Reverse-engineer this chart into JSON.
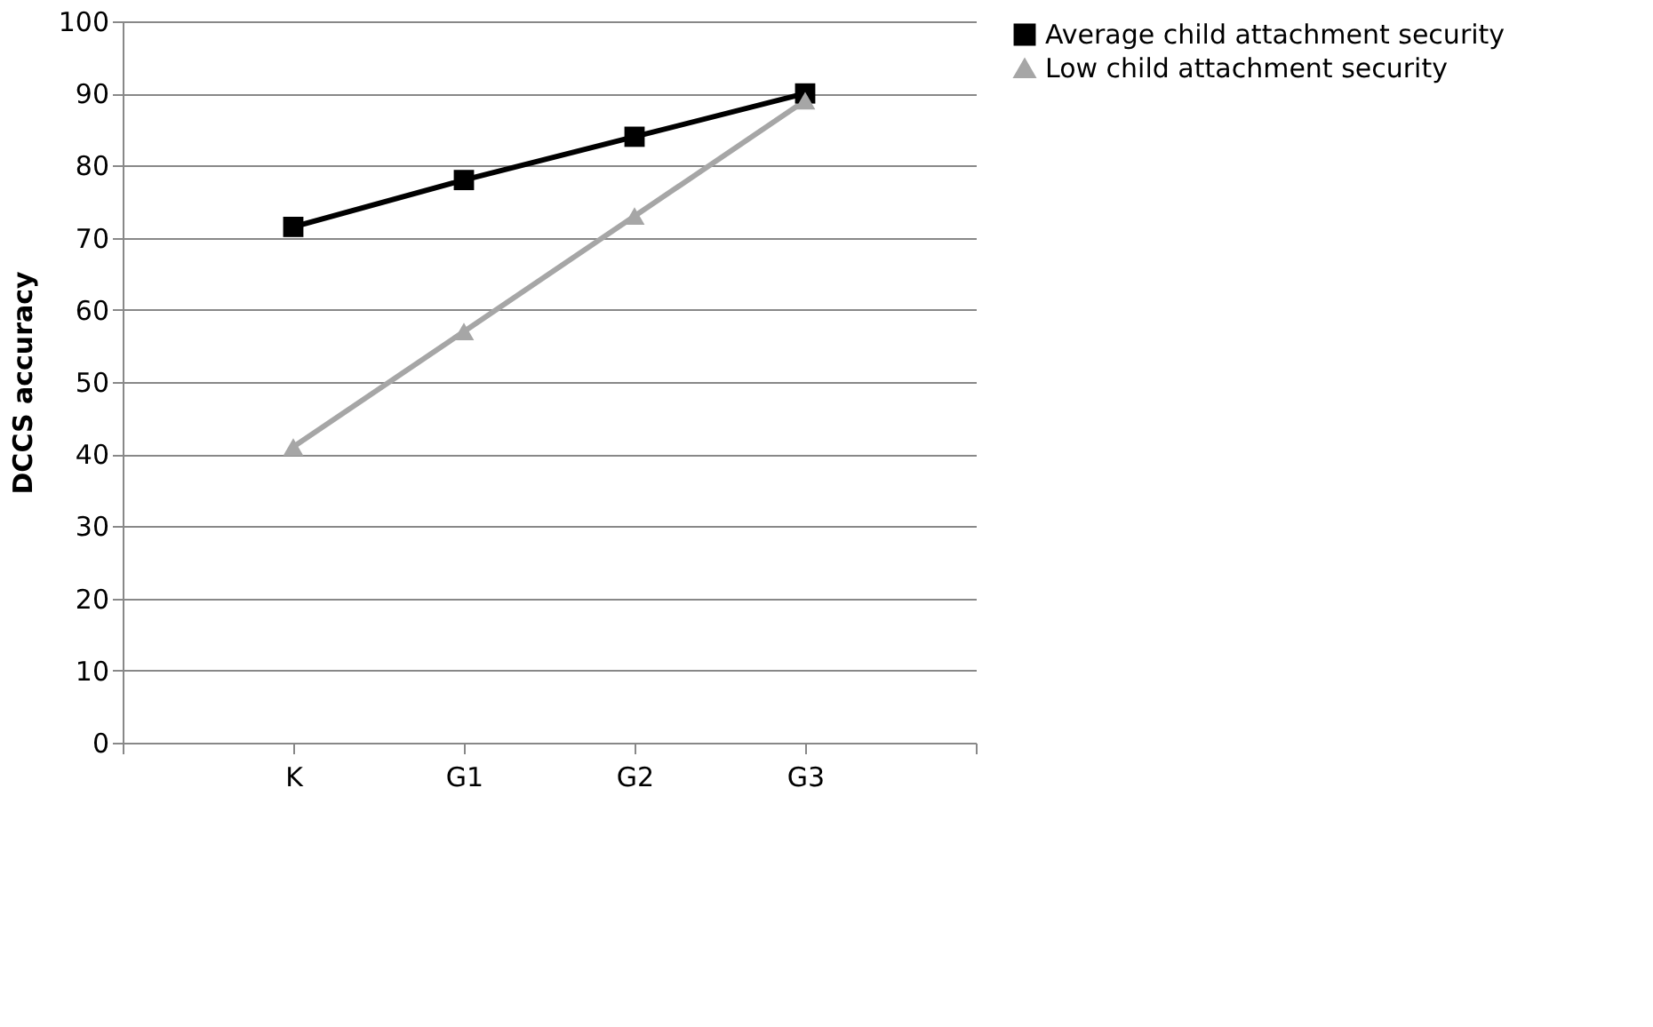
{
  "chart_data": {
    "type": "line",
    "ylabel": "DCCS accuracy",
    "categories": [
      null,
      "K",
      "G1",
      "G2",
      "G3",
      null
    ],
    "series": [
      {
        "name": "Average child attachment security",
        "color": "#000000",
        "marker": "square",
        "values": [
          null,
          71.5,
          78,
          84,
          90,
          null
        ]
      },
      {
        "name": "Low child attachment security",
        "color": "#a6a6a6",
        "marker": "triangle",
        "values": [
          null,
          41,
          57,
          73,
          89,
          null
        ]
      }
    ],
    "ylim": [
      0,
      100
    ],
    "yticks": [
      0,
      10,
      20,
      30,
      40,
      50,
      60,
      70,
      80,
      90,
      100
    ],
    "grid": "y",
    "legend": "right",
    "line_style": "solid"
  }
}
